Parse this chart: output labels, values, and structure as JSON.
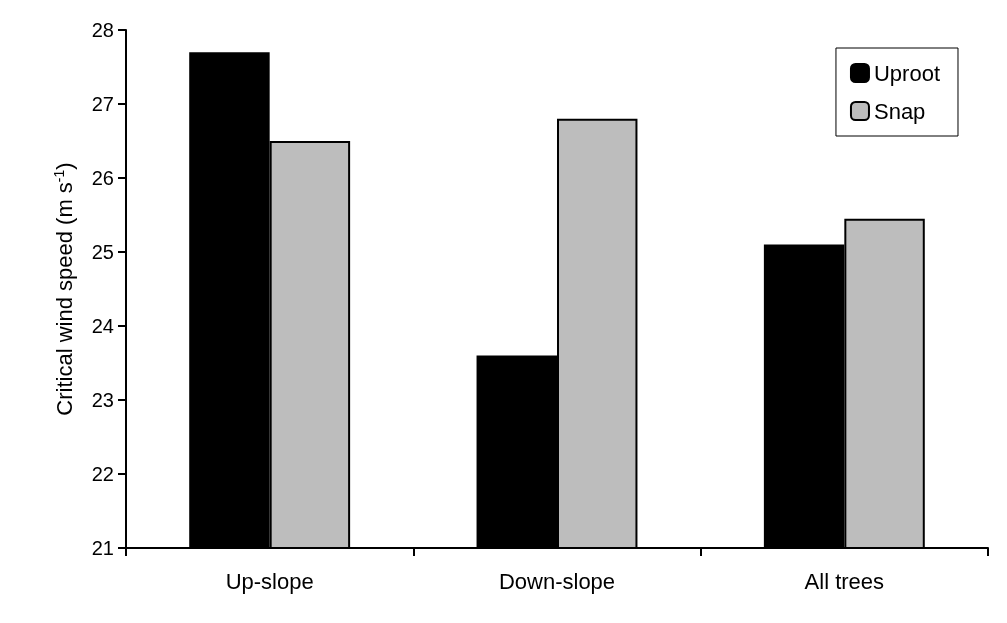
{
  "chart_data": {
    "type": "bar",
    "ylabel": "Critical wind speed (m s$^{-1}$)",
    "categories": [
      "Up-slope",
      "Down-slope",
      "All trees"
    ],
    "series": [
      {
        "name": "Uproot",
        "color": "#000000",
        "values": [
          27.7,
          23.6,
          25.1
        ]
      },
      {
        "name": "Snap",
        "color": "#bdbdbd",
        "values": [
          26.5,
          26.8,
          25.45
        ]
      }
    ],
    "ylim": [
      21,
      28
    ],
    "yticks": [
      21,
      22,
      23,
      24,
      25,
      26,
      27,
      28
    ],
    "grid": false,
    "legend": "top right"
  }
}
